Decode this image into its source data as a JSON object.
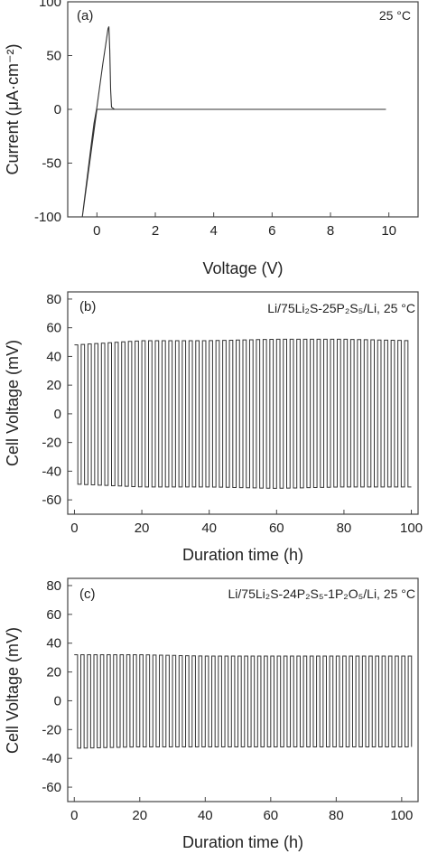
{
  "figure": {
    "panels": [
      {
        "panel_label": "(a)",
        "annotation": "25 °C",
        "xlabel": "Voltage  (V)",
        "ylabel": "Current  (μA·cm⁻²)"
      },
      {
        "panel_label": "(b)",
        "annotation": "Li/75Li₂S-25P₂S₅/Li, 25 °C",
        "xlabel": "Duration time  (h)",
        "ylabel": "Cell Voltage  (mV)"
      },
      {
        "panel_label": "(c)",
        "annotation": "Li/75Li₂S-24P₂S₅-1P₂O₅/Li, 25 °C",
        "xlabel": "Duration time  (h)",
        "ylabel": "Cell Voltage  (mV)"
      }
    ]
  },
  "chart_data": [
    {
      "type": "line",
      "title": "",
      "xlabel": "Voltage  (V)",
      "ylabel": "Current  (μA·cm⁻²)",
      "xlim": [
        -1,
        11
      ],
      "ylim": [
        -100,
        100
      ],
      "xticks": [
        0,
        2,
        4,
        6,
        8,
        10
      ],
      "yticks": [
        100,
        50,
        0,
        -50,
        -100
      ],
      "grid": false,
      "annotations": [
        "(a)",
        "25 °C"
      ],
      "series": [
        {
          "x": [
            9.9,
            0.6,
            0.5,
            0.47,
            0.44,
            0.41,
            0.38,
            0.3,
            0.2,
            0.1,
            0.0,
            -0.1,
            -0.2,
            -0.3,
            -0.4,
            -0.5,
            -0.4,
            -0.3,
            -0.2,
            -0.1,
            0.0,
            0.1,
            0.2,
            0.3,
            0.38,
            0.41,
            0.44,
            0.47,
            0.5,
            0.55,
            0.6,
            9.9
          ],
          "y": [
            0,
            0,
            2,
            18,
            55,
            77,
            75,
            60,
            42,
            22,
            2,
            -13,
            -34,
            -56,
            -78,
            -100,
            -80,
            -60,
            -40,
            -20,
            0,
            0,
            0,
            0,
            0,
            0,
            0,
            0,
            0,
            0,
            0,
            0
          ]
        }
      ]
    },
    {
      "type": "line",
      "title": "",
      "xlabel": "Duration time  (h)",
      "ylabel": "Cell Voltage  (mV)",
      "xlim": [
        -2,
        102
      ],
      "ylim": [
        -70,
        85
      ],
      "xticks": [
        0,
        20,
        40,
        60,
        80,
        100
      ],
      "yticks": [
        80,
        60,
        40,
        20,
        0,
        -20,
        -40,
        -60
      ],
      "grid": false,
      "annotations": [
        "(b)",
        "Li/75Li₂S-25P₂S₅/Li, 25 °C"
      ],
      "series": [
        {
          "waveform": "square",
          "x_start": 0,
          "x_end": 100,
          "period_h": 2,
          "amplitude_at_x": [
            [
              0,
              48
            ],
            [
              20,
              51
            ],
            [
              40,
              51
            ],
            [
              60,
              52
            ],
            [
              80,
              52
            ],
            [
              100,
              51
            ]
          ],
          "negative_amplitude_at_x": [
            [
              0,
              -49
            ],
            [
              20,
              -51
            ],
            [
              40,
              -51
            ],
            [
              60,
              -52
            ],
            [
              80,
              -51
            ],
            [
              100,
              -51
            ]
          ]
        }
      ]
    },
    {
      "type": "line",
      "title": "",
      "xlabel": "Duration time  (h)",
      "ylabel": "Cell Voltage  (mV)",
      "xlim": [
        -2,
        105
      ],
      "ylim": [
        -70,
        85
      ],
      "xticks": [
        0,
        20,
        40,
        60,
        80,
        100
      ],
      "yticks": [
        80,
        60,
        40,
        20,
        0,
        -20,
        -40,
        -60
      ],
      "grid": false,
      "annotations": [
        "(c)",
        "Li/75Li₂S-24P₂S₅-1P₂O₅/Li, 25 °C"
      ],
      "series": [
        {
          "waveform": "square",
          "x_start": 0,
          "x_end": 103,
          "period_h": 2,
          "amplitude_at_x": [
            [
              0,
              32
            ],
            [
              20,
              32
            ],
            [
              40,
              31
            ],
            [
              60,
              31
            ],
            [
              80,
              31
            ],
            [
              103,
              31
            ]
          ],
          "negative_amplitude_at_x": [
            [
              0,
              -33
            ],
            [
              20,
              -32
            ],
            [
              40,
              -32
            ],
            [
              60,
              -32
            ],
            [
              80,
              -32
            ],
            [
              103,
              -32
            ]
          ]
        }
      ]
    }
  ]
}
